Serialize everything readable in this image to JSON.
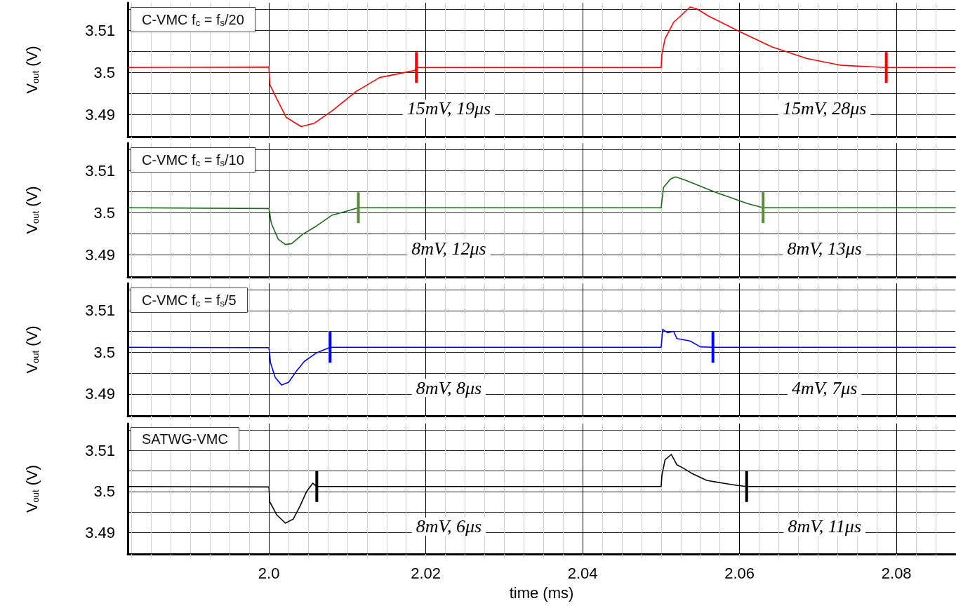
{
  "chart_data": [
    {
      "type": "line",
      "title": "C-VMC f$_{c}$ = f$_{s}$/20",
      "ylabel": "V$_{out}$ (V)",
      "tick_labels": "y",
      "grid": true,
      "xlim": [
        1.982,
        2.0875
      ],
      "ylim": [
        3.4848,
        3.5165
      ],
      "xticks": [
        {
          "value": 1.9825,
          "label": null
        },
        {
          "value": 1.985,
          "label": null
        },
        {
          "value": 1.9875,
          "label": null
        },
        {
          "value": 1.99,
          "label": null
        },
        {
          "value": 1.9925,
          "label": null
        },
        {
          "value": 1.995,
          "label": null
        },
        {
          "value": 1.9975,
          "label": null
        },
        2,
        {
          "value": 2.0025,
          "label": null
        },
        {
          "value": 2.005,
          "label": null
        },
        {
          "value": 2.0075,
          "label": null
        },
        {
          "value": 2.01,
          "label": null
        },
        {
          "value": 2.0125,
          "label": null
        },
        {
          "value": 2.015,
          "label": null
        },
        {
          "value": 2.0175,
          "label": null
        },
        2.02,
        {
          "value": 2.0225,
          "label": null
        },
        {
          "value": 2.025,
          "label": null
        },
        {
          "value": 2.0275,
          "label": null
        },
        {
          "value": 2.03,
          "label": null
        },
        {
          "value": 2.0325,
          "label": null
        },
        {
          "value": 2.035,
          "label": null
        },
        {
          "value": 2.0375,
          "label": null
        },
        2.04,
        {
          "value": 2.0425,
          "label": null
        },
        {
          "value": 2.045,
          "label": null
        },
        {
          "value": 2.0475,
          "label": null
        },
        {
          "value": 2.05,
          "label": null
        },
        {
          "value": 2.0525,
          "label": null
        },
        {
          "value": 2.055,
          "label": null
        },
        {
          "value": 2.0575,
          "label": null
        },
        2.06,
        {
          "value": 2.0625,
          "label": null
        },
        {
          "value": 2.065,
          "label": null
        },
        {
          "value": 2.0675,
          "label": null
        },
        {
          "value": 2.07,
          "label": null
        },
        {
          "value": 2.0725,
          "label": null
        },
        {
          "value": 2.075,
          "label": null
        },
        {
          "value": 2.0775,
          "label": null
        },
        2.08,
        {
          "value": 2.0825,
          "label": null
        },
        {
          "value": 2.085,
          "label": null
        }
      ],
      "yticks": [
        3.49,
        {
          "value": 3.495,
          "label": null
        },
        3.5,
        {
          "value": 3.505,
          "label": null
        },
        3.51,
        {
          "value": 3.515,
          "label": null
        }
      ],
      "series": [
        {
          "color": "#ff0000",
          "x": [
            1.982,
            2.0,
            2.0001,
            2.001,
            2.0022,
            2.0041,
            2.0058,
            2.0081,
            2.0111,
            2.0141,
            2.0186,
            2.0188,
            2.05,
            2.0501,
            2.0505,
            2.0516,
            2.0537,
            2.0546,
            2.0561,
            2.06,
            2.0641,
            2.0686,
            2.073,
            2.0787,
            2.0875
          ],
          "values": [
            3.5012,
            3.5013,
            3.4972,
            3.4938,
            3.4894,
            3.4872,
            3.488,
            3.491,
            3.4955,
            3.4988,
            3.5005,
            3.5012,
            3.5012,
            3.5044,
            3.508,
            3.5119,
            3.5155,
            3.515,
            3.5133,
            3.5097,
            3.5061,
            3.5033,
            3.5017,
            3.5012,
            3.5012
          ]
        }
      ],
      "ref_lines": [
        {
          "axis": "x",
          "value": 2.0188,
          "color": "#ff0000"
        },
        {
          "axis": "x",
          "value": 2.0787,
          "color": "#ff0000"
        }
      ],
      "annotations": [
        "15mV, 19μs",
        "15mV, 28μs"
      ]
    },
    {
      "type": "line",
      "title": "C-VMC f$_{c}$ = f$_{s}$/10",
      "ylabel": "V$_{out}$ (V)",
      "tick_labels": "y",
      "grid": true,
      "xlim": [
        1.982,
        2.0875
      ],
      "ylim": [
        3.4848,
        3.5165
      ],
      "xticks": [
        {
          "value": 1.9825,
          "label": null
        },
        {
          "value": 1.985,
          "label": null
        },
        {
          "value": 1.9875,
          "label": null
        },
        {
          "value": 1.99,
          "label": null
        },
        {
          "value": 1.9925,
          "label": null
        },
        {
          "value": 1.995,
          "label": null
        },
        {
          "value": 1.9975,
          "label": null
        },
        2,
        {
          "value": 2.0025,
          "label": null
        },
        {
          "value": 2.005,
          "label": null
        },
        {
          "value": 2.0075,
          "label": null
        },
        {
          "value": 2.01,
          "label": null
        },
        {
          "value": 2.0125,
          "label": null
        },
        {
          "value": 2.015,
          "label": null
        },
        {
          "value": 2.0175,
          "label": null
        },
        2.02,
        {
          "value": 2.0225,
          "label": null
        },
        {
          "value": 2.025,
          "label": null
        },
        {
          "value": 2.0275,
          "label": null
        },
        {
          "value": 2.03,
          "label": null
        },
        {
          "value": 2.0325,
          "label": null
        },
        {
          "value": 2.035,
          "label": null
        },
        {
          "value": 2.0375,
          "label": null
        },
        2.04,
        {
          "value": 2.0425,
          "label": null
        },
        {
          "value": 2.045,
          "label": null
        },
        {
          "value": 2.0475,
          "label": null
        },
        {
          "value": 2.05,
          "label": null
        },
        {
          "value": 2.0525,
          "label": null
        },
        {
          "value": 2.055,
          "label": null
        },
        {
          "value": 2.0575,
          "label": null
        },
        2.06,
        {
          "value": 2.0625,
          "label": null
        },
        {
          "value": 2.065,
          "label": null
        },
        {
          "value": 2.0675,
          "label": null
        },
        {
          "value": 2.07,
          "label": null
        },
        {
          "value": 2.0725,
          "label": null
        },
        {
          "value": 2.075,
          "label": null
        },
        {
          "value": 2.0775,
          "label": null
        },
        2.08,
        {
          "value": 2.0825,
          "label": null
        },
        {
          "value": 2.085,
          "label": null
        }
      ],
      "yticks": [
        3.49,
        {
          "value": 3.495,
          "label": null
        },
        3.5,
        {
          "value": 3.505,
          "label": null
        },
        3.51,
        {
          "value": 3.515,
          "label": null
        }
      ],
      "series": [
        {
          "color": "#1a6b1a",
          "x": [
            1.982,
            2.0,
            2.0003,
            2.0012,
            2.0021,
            2.0029,
            2.0043,
            2.006,
            2.008,
            2.0101,
            2.0114,
            2.05,
            2.0503,
            2.0512,
            2.0518,
            2.053,
            2.055,
            2.057,
            2.059,
            2.061,
            2.063,
            2.0875
          ],
          "values": [
            3.5012,
            3.501,
            3.4975,
            3.4937,
            3.4925,
            3.4927,
            3.4949,
            3.4968,
            3.4994,
            3.5005,
            3.5012,
            3.5012,
            3.506,
            3.508,
            3.5085,
            3.5078,
            3.5063,
            3.5048,
            3.5035,
            3.5022,
            3.5012,
            3.5012
          ]
        }
      ],
      "ref_lines": [
        {
          "axis": "x",
          "value": 2.0114,
          "color": "#5b8c3a"
        },
        {
          "axis": "x",
          "value": 2.063,
          "color": "#5b8c3a"
        }
      ],
      "annotations": [
        "8mV, 12μs",
        "8mV, 13μs"
      ]
    },
    {
      "type": "line",
      "title": "C-VMC f$_{c}$ = f$_{s}$/5",
      "ylabel": "V$_{out}$ (V)",
      "tick_labels": "y",
      "grid": true,
      "xlim": [
        1.982,
        2.0875
      ],
      "ylim": [
        3.4848,
        3.5165
      ],
      "xticks": [
        {
          "value": 1.9825,
          "label": null
        },
        {
          "value": 1.985,
          "label": null
        },
        {
          "value": 1.9875,
          "label": null
        },
        {
          "value": 1.99,
          "label": null
        },
        {
          "value": 1.9925,
          "label": null
        },
        {
          "value": 1.995,
          "label": null
        },
        {
          "value": 1.9975,
          "label": null
        },
        2,
        {
          "value": 2.0025,
          "label": null
        },
        {
          "value": 2.005,
          "label": null
        },
        {
          "value": 2.0075,
          "label": null
        },
        {
          "value": 2.01,
          "label": null
        },
        {
          "value": 2.0125,
          "label": null
        },
        {
          "value": 2.015,
          "label": null
        },
        {
          "value": 2.0175,
          "label": null
        },
        2.02,
        {
          "value": 2.0225,
          "label": null
        },
        {
          "value": 2.025,
          "label": null
        },
        {
          "value": 2.0275,
          "label": null
        },
        {
          "value": 2.03,
          "label": null
        },
        {
          "value": 2.0325,
          "label": null
        },
        {
          "value": 2.035,
          "label": null
        },
        {
          "value": 2.0375,
          "label": null
        },
        2.04,
        {
          "value": 2.0425,
          "label": null
        },
        {
          "value": 2.045,
          "label": null
        },
        {
          "value": 2.0475,
          "label": null
        },
        {
          "value": 2.05,
          "label": null
        },
        {
          "value": 2.0525,
          "label": null
        },
        {
          "value": 2.055,
          "label": null
        },
        {
          "value": 2.0575,
          "label": null
        },
        2.06,
        {
          "value": 2.0625,
          "label": null
        },
        {
          "value": 2.065,
          "label": null
        },
        {
          "value": 2.0675,
          "label": null
        },
        {
          "value": 2.07,
          "label": null
        },
        {
          "value": 2.0725,
          "label": null
        },
        {
          "value": 2.075,
          "label": null
        },
        {
          "value": 2.0775,
          "label": null
        },
        2.08,
        {
          "value": 2.0825,
          "label": null
        },
        {
          "value": 2.085,
          "label": null
        }
      ],
      "yticks": [
        3.49,
        {
          "value": 3.495,
          "label": null
        },
        3.5,
        {
          "value": 3.505,
          "label": null
        },
        3.51,
        {
          "value": 3.515,
          "label": null
        }
      ],
      "series": [
        {
          "color": "#0000ff",
          "x": [
            1.982,
            2.0,
            2.0002,
            2.0008,
            2.0016,
            2.0025,
            2.0035,
            2.0045,
            2.006,
            2.0078,
            2.05,
            2.0502,
            2.0508,
            2.0516,
            2.052,
            2.0537,
            2.055,
            2.0566,
            2.0875
          ],
          "values": [
            3.5012,
            3.5011,
            3.4975,
            3.494,
            3.4922,
            3.4928,
            3.4955,
            3.4978,
            3.4998,
            3.5012,
            3.5012,
            3.5055,
            3.5047,
            3.505,
            3.5033,
            3.5027,
            3.5013,
            3.5012,
            3.5012
          ]
        }
      ],
      "ref_lines": [
        {
          "axis": "x",
          "value": 2.0078,
          "color": "#0000ff"
        },
        {
          "axis": "x",
          "value": 2.0566,
          "color": "#0000ff"
        }
      ],
      "annotations": [
        "8mV, 8μs",
        "4mV, 7μs"
      ]
    },
    {
      "type": "line",
      "title": "SATWG-VMC",
      "xlabel": "time (ms)",
      "ylabel": "V$_{out}$ (V)",
      "grid": true,
      "xlim": [
        1.982,
        2.0875
      ],
      "ylim": [
        3.4848,
        3.5165
      ],
      "xticks": [
        {
          "value": 1.9825,
          "label": null
        },
        {
          "value": 1.985,
          "label": null
        },
        {
          "value": 1.9875,
          "label": null
        },
        {
          "value": 1.99,
          "label": null
        },
        {
          "value": 1.9925,
          "label": null
        },
        {
          "value": 1.995,
          "label": null
        },
        {
          "value": 1.9975,
          "label": null
        },
        {
          "value": 2,
          "label": "2.0"
        },
        {
          "value": 2.0025,
          "label": null
        },
        {
          "value": 2.005,
          "label": null
        },
        {
          "value": 2.0075,
          "label": null
        },
        {
          "value": 2.01,
          "label": null
        },
        {
          "value": 2.0125,
          "label": null
        },
        {
          "value": 2.015,
          "label": null
        },
        {
          "value": 2.0175,
          "label": null
        },
        2.02,
        {
          "value": 2.0225,
          "label": null
        },
        {
          "value": 2.025,
          "label": null
        },
        {
          "value": 2.0275,
          "label": null
        },
        {
          "value": 2.03,
          "label": null
        },
        {
          "value": 2.0325,
          "label": null
        },
        {
          "value": 2.035,
          "label": null
        },
        {
          "value": 2.0375,
          "label": null
        },
        2.04,
        {
          "value": 2.0425,
          "label": null
        },
        {
          "value": 2.045,
          "label": null
        },
        {
          "value": 2.0475,
          "label": null
        },
        {
          "value": 2.05,
          "label": null
        },
        {
          "value": 2.0525,
          "label": null
        },
        {
          "value": 2.055,
          "label": null
        },
        {
          "value": 2.0575,
          "label": null
        },
        2.06,
        {
          "value": 2.0625,
          "label": null
        },
        {
          "value": 2.065,
          "label": null
        },
        {
          "value": 2.0675,
          "label": null
        },
        {
          "value": 2.07,
          "label": null
        },
        {
          "value": 2.0725,
          "label": null
        },
        {
          "value": 2.075,
          "label": null
        },
        {
          "value": 2.0775,
          "label": null
        },
        2.08,
        {
          "value": 2.0825,
          "label": null
        },
        {
          "value": 2.085,
          "label": null
        }
      ],
      "yticks": [
        3.49,
        {
          "value": 3.495,
          "label": null
        },
        3.5,
        {
          "value": 3.505,
          "label": null
        },
        3.51,
        {
          "value": 3.515,
          "label": null
        }
      ],
      "series": [
        {
          "color": "#000000",
          "x": [
            1.982,
            2.0,
            2.0001,
            2.001,
            2.0021,
            2.0031,
            2.0039,
            2.0048,
            2.0056,
            2.0061,
            2.05,
            2.0501,
            2.0505,
            2.0513,
            2.052,
            2.0528,
            2.054,
            2.0558,
            2.0579,
            2.0596,
            2.0609,
            2.0875
          ],
          "values": [
            3.5012,
            3.5011,
            3.4975,
            3.4943,
            3.4923,
            3.4933,
            3.4962,
            3.5,
            3.502,
            3.5012,
            3.5012,
            3.504,
            3.5077,
            3.509,
            3.5065,
            3.5057,
            3.5043,
            3.5027,
            3.502,
            3.5015,
            3.5012,
            3.5012
          ]
        }
      ],
      "ref_lines": [
        {
          "axis": "x",
          "value": 2.0061,
          "color": "#000000"
        },
        {
          "axis": "x",
          "value": 2.0609,
          "color": "#000000"
        }
      ],
      "annotations": [
        "8mV, 6μs",
        "8mV, 11μs"
      ]
    }
  ]
}
